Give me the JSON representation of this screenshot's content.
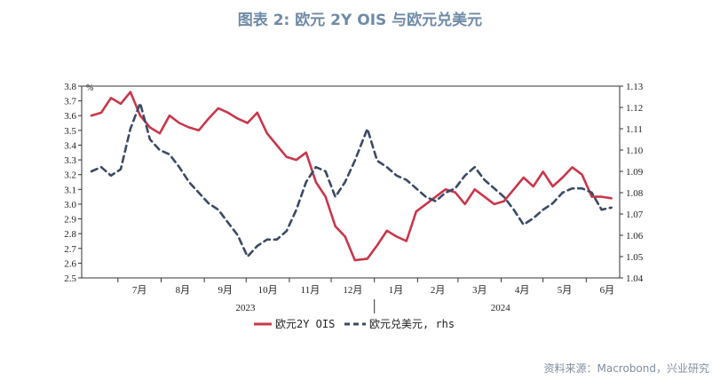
{
  "title": "图表 2:  欧元 2Y OIS 与欧元兑美元",
  "source": "资料来源：Macrobond，兴业研究",
  "chart_data": {
    "type": "line",
    "left_axis": {
      "unit": "%",
      "min": 2.5,
      "max": 3.8,
      "ticks": [
        "2.5",
        "2.6",
        "2.7",
        "2.8",
        "2.9",
        "3.0",
        "3.1",
        "3.2",
        "3.3",
        "3.4",
        "3.5",
        "3.6",
        "3.7",
        "3.8"
      ]
    },
    "right_axis": {
      "unit": "",
      "min": 1.04,
      "max": 1.13,
      "ticks": [
        "1.04",
        "1.05",
        "1.06",
        "1.07",
        "1.08",
        "1.09",
        "1.10",
        "1.11",
        "1.12",
        "1.13"
      ]
    },
    "x_axis": {
      "months": [
        "7月",
        "8月",
        "9月",
        "10月",
        "11月",
        "12月",
        "1月",
        "2月",
        "3月",
        "4月",
        "5月",
        "6月"
      ],
      "years": [
        {
          "label": "2023"
        },
        {
          "label": "2024"
        }
      ]
    },
    "series": [
      {
        "name": "欧元2Y OIS",
        "axis": "left",
        "color": "#c8374a",
        "style": "solid",
        "dates": [
          "2023-06-12",
          "2023-06-19",
          "2023-06-26",
          "2023-07-03",
          "2023-07-10",
          "2023-07-17",
          "2023-07-24",
          "2023-07-31",
          "2023-08-07",
          "2023-08-14",
          "2023-08-21",
          "2023-08-28",
          "2023-09-04",
          "2023-09-11",
          "2023-09-18",
          "2023-09-25",
          "2023-10-02",
          "2023-10-09",
          "2023-10-16",
          "2023-10-23",
          "2023-10-30",
          "2023-11-06",
          "2023-11-13",
          "2023-11-20",
          "2023-11-27",
          "2023-12-04",
          "2023-12-11",
          "2023-12-18",
          "2023-12-27",
          "2024-01-03",
          "2024-01-10",
          "2024-01-17",
          "2024-01-24",
          "2024-01-31",
          "2024-02-07",
          "2024-02-14",
          "2024-02-21",
          "2024-02-28",
          "2024-03-06",
          "2024-03-13",
          "2024-03-20",
          "2024-03-27",
          "2024-04-03",
          "2024-04-10",
          "2024-04-17",
          "2024-04-24",
          "2024-05-01",
          "2024-05-08",
          "2024-05-15",
          "2024-05-22",
          "2024-05-29",
          "2024-06-05",
          "2024-06-12",
          "2024-06-19"
        ],
        "values": [
          3.6,
          3.62,
          3.72,
          3.68,
          3.76,
          3.6,
          3.52,
          3.48,
          3.6,
          3.55,
          3.52,
          3.5,
          3.58,
          3.65,
          3.62,
          3.58,
          3.55,
          3.62,
          3.48,
          3.4,
          3.32,
          3.3,
          3.35,
          3.15,
          3.05,
          2.85,
          2.78,
          2.62,
          2.63,
          2.72,
          2.82,
          2.78,
          2.75,
          2.95,
          3.0,
          3.05,
          3.1,
          3.08,
          3.0,
          3.1,
          3.05,
          3.0,
          3.02,
          3.1,
          3.18,
          3.12,
          3.22,
          3.12,
          3.18,
          3.25,
          3.2,
          3.05,
          3.05,
          3.04
        ]
      },
      {
        "name": "欧元兑美元, rhs",
        "axis": "right",
        "color": "#3a4a66",
        "style": "dashed",
        "dates": [
          "2023-06-12",
          "2023-06-19",
          "2023-06-26",
          "2023-07-03",
          "2023-07-10",
          "2023-07-17",
          "2023-07-24",
          "2023-07-31",
          "2023-08-07",
          "2023-08-14",
          "2023-08-21",
          "2023-08-28",
          "2023-09-04",
          "2023-09-11",
          "2023-09-18",
          "2023-09-25",
          "2023-10-02",
          "2023-10-09",
          "2023-10-16",
          "2023-10-23",
          "2023-10-30",
          "2023-11-06",
          "2023-11-13",
          "2023-11-20",
          "2023-11-27",
          "2023-12-04",
          "2023-12-11",
          "2023-12-18",
          "2023-12-27",
          "2024-01-03",
          "2024-01-10",
          "2024-01-17",
          "2024-01-24",
          "2024-01-31",
          "2024-02-07",
          "2024-02-14",
          "2024-02-21",
          "2024-02-28",
          "2024-03-06",
          "2024-03-13",
          "2024-03-20",
          "2024-03-27",
          "2024-04-03",
          "2024-04-10",
          "2024-04-17",
          "2024-04-24",
          "2024-05-01",
          "2024-05-08",
          "2024-05-15",
          "2024-05-22",
          "2024-05-29",
          "2024-06-05",
          "2024-06-12",
          "2024-06-19"
        ],
        "values": [
          1.09,
          1.092,
          1.088,
          1.091,
          1.11,
          1.122,
          1.105,
          1.1,
          1.098,
          1.092,
          1.085,
          1.08,
          1.075,
          1.072,
          1.066,
          1.06,
          1.05,
          1.055,
          1.058,
          1.058,
          1.062,
          1.072,
          1.085,
          1.092,
          1.09,
          1.078,
          1.085,
          1.095,
          1.11,
          1.095,
          1.092,
          1.088,
          1.086,
          1.082,
          1.078,
          1.076,
          1.08,
          1.082,
          1.088,
          1.092,
          1.086,
          1.082,
          1.078,
          1.072,
          1.065,
          1.068,
          1.072,
          1.075,
          1.08,
          1.082,
          1.082,
          1.08,
          1.072,
          1.073
        ]
      }
    ],
    "legend_placement": "bottom-center",
    "grid": false
  }
}
